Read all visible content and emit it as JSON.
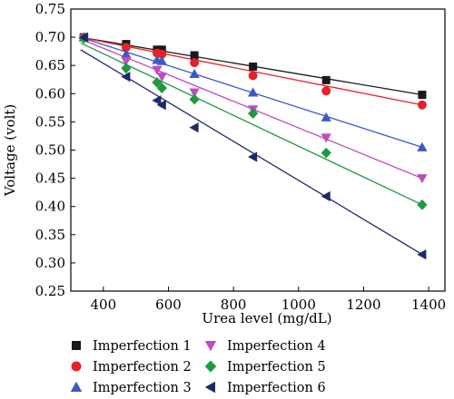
{
  "chart_data": {
    "type": "scatter",
    "title": "",
    "xlabel": "Urea level (mg/dL)",
    "ylabel": "Voltage (volt)",
    "xlim": [
      300,
      1450
    ],
    "ylim": [
      0.25,
      0.75
    ],
    "x_ticks": [
      400,
      600,
      800,
      1000,
      1200,
      1400
    ],
    "y_ticks": [
      "0.25",
      "0.30",
      "0.35",
      "0.40",
      "0.45",
      "0.50",
      "0.55",
      "0.60",
      "0.65",
      "0.70",
      "0.75"
    ],
    "grid": false,
    "legend_position": "bottom",
    "fit_lines": true,
    "series": [
      {
        "name": "Imperfection 1",
        "color": "#1a1a1a",
        "marker": "square",
        "x": [
          340,
          470,
          565,
          580,
          680,
          860,
          1085,
          1380
        ],
        "y": [
          0.7,
          0.688,
          0.678,
          0.678,
          0.668,
          0.648,
          0.624,
          0.598
        ],
        "fit": [
          [
            330,
            0.7
          ],
          [
            1380,
            0.598
          ]
        ]
      },
      {
        "name": "Imperfection 2",
        "color": "#e8202a",
        "marker": "circle",
        "x": [
          340,
          470,
          565,
          580,
          680,
          860,
          1085,
          1380
        ],
        "y": [
          0.7,
          0.682,
          0.672,
          0.67,
          0.655,
          0.632,
          0.605,
          0.58
        ],
        "fit": [
          [
            330,
            0.7
          ],
          [
            1380,
            0.58
          ]
        ]
      },
      {
        "name": "Imperfection 3",
        "color": "#3b5bc4",
        "marker": "triangle-up",
        "x": [
          340,
          470,
          565,
          580,
          680,
          860,
          1085,
          1380
        ],
        "y": [
          0.7,
          0.67,
          0.66,
          0.658,
          0.635,
          0.602,
          0.558,
          0.505
        ],
        "fit": [
          [
            330,
            0.7
          ],
          [
            1380,
            0.505
          ]
        ]
      },
      {
        "name": "Imperfection 4",
        "color": "#c04cc0",
        "marker": "triangle-down",
        "x": [
          340,
          470,
          565,
          580,
          680,
          860,
          1085,
          1380
        ],
        "y": [
          0.698,
          0.658,
          0.642,
          0.63,
          0.602,
          0.572,
          0.522,
          0.45
        ],
        "fit": [
          [
            330,
            0.697
          ],
          [
            1380,
            0.45
          ]
        ]
      },
      {
        "name": "Imperfection 5",
        "color": "#1e9a3e",
        "marker": "diamond",
        "x": [
          340,
          470,
          565,
          580,
          680,
          860,
          1085,
          1380
        ],
        "y": [
          0.698,
          0.645,
          0.62,
          0.61,
          0.59,
          0.565,
          0.495,
          0.403
        ],
        "fit": [
          [
            330,
            0.69
          ],
          [
            1380,
            0.403
          ]
        ]
      },
      {
        "name": "Imperfection 6",
        "color": "#1c2a6a",
        "marker": "triangle-left",
        "x": [
          340,
          470,
          565,
          580,
          680,
          860,
          1085,
          1380
        ],
        "y": [
          0.7,
          0.63,
          0.588,
          0.58,
          0.54,
          0.488,
          0.418,
          0.315
        ],
        "fit": [
          [
            330,
            0.678
          ],
          [
            1380,
            0.315
          ]
        ]
      }
    ]
  }
}
